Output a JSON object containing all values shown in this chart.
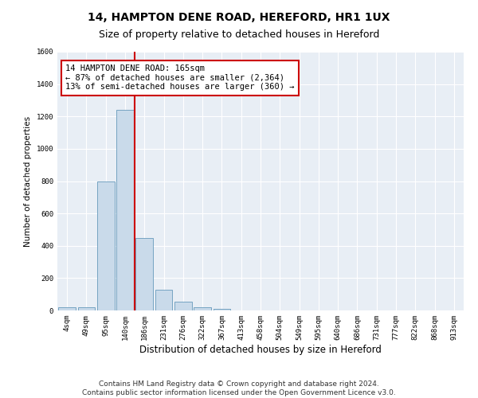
{
  "title": "14, HAMPTON DENE ROAD, HEREFORD, HR1 1UX",
  "subtitle": "Size of property relative to detached houses in Hereford",
  "xlabel": "Distribution of detached houses by size in Hereford",
  "ylabel": "Number of detached properties",
  "categories": [
    "4sqm",
    "49sqm",
    "95sqm",
    "140sqm",
    "186sqm",
    "231sqm",
    "276sqm",
    "322sqm",
    "367sqm",
    "413sqm",
    "458sqm",
    "504sqm",
    "549sqm",
    "595sqm",
    "640sqm",
    "686sqm",
    "731sqm",
    "777sqm",
    "822sqm",
    "868sqm",
    "913sqm"
  ],
  "bar_values": [
    18,
    20,
    800,
    1240,
    450,
    130,
    55,
    20,
    8,
    2,
    1,
    0,
    0,
    0,
    0,
    0,
    0,
    0,
    0,
    0,
    0
  ],
  "bar_color": "#c9daea",
  "bar_edge_color": "#6699bb",
  "ylim": [
    0,
    1600
  ],
  "yticks": [
    0,
    200,
    400,
    600,
    800,
    1000,
    1200,
    1400,
    1600
  ],
  "vline_color": "#cc0000",
  "annotation_line1": "14 HAMPTON DENE ROAD: 165sqm",
  "annotation_line2": "← 87% of detached houses are smaller (2,364)",
  "annotation_line3": "13% of semi-detached houses are larger (360) →",
  "annotation_box_facecolor": "white",
  "annotation_box_edgecolor": "#cc0000",
  "footer_line1": "Contains HM Land Registry data © Crown copyright and database right 2024.",
  "footer_line2": "Contains public sector information licensed under the Open Government Licence v3.0.",
  "background_color": "#ffffff",
  "plot_bg_color": "#e8eef5",
  "grid_color": "#ffffff",
  "title_fontsize": 10,
  "subtitle_fontsize": 9,
  "xlabel_fontsize": 8.5,
  "ylabel_fontsize": 7.5,
  "tick_fontsize": 6.5,
  "annotation_fontsize": 7.5,
  "footer_fontsize": 6.5
}
